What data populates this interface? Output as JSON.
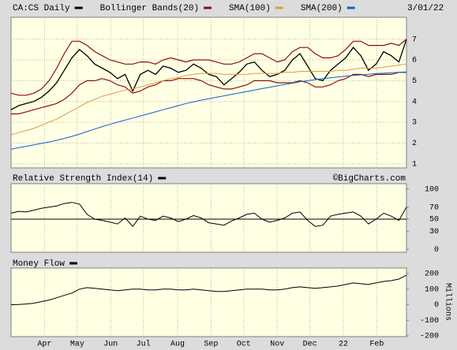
{
  "chart_data": [
    {
      "type": "line",
      "date": "3/01/22",
      "x": [
        0,
        1,
        2,
        3,
        4,
        5,
        6,
        7,
        8,
        9,
        10,
        11,
        12,
        13,
        14,
        15,
        16,
        17,
        18,
        19,
        20,
        21,
        22,
        23,
        24,
        25,
        26,
        27,
        28,
        29,
        30,
        31,
        32,
        33,
        34,
        35,
        36,
        37,
        38,
        39,
        40,
        41,
        42,
        43,
        44,
        45,
        46,
        47,
        48,
        49,
        50,
        51,
        52
      ],
      "xlim": [
        0,
        52
      ],
      "ylim": [
        0.8,
        8.05
      ],
      "yticks": [
        1,
        2,
        3,
        4,
        5,
        6,
        7
      ],
      "grid": true,
      "series": [
        {
          "name": "CA:CS Daily",
          "color": "#000000",
          "values": [
            3.6,
            3.8,
            3.9,
            4.0,
            4.2,
            4.5,
            4.9,
            5.5,
            6.1,
            6.5,
            6.2,
            5.8,
            5.6,
            5.4,
            5.1,
            5.3,
            4.5,
            5.3,
            5.5,
            5.3,
            5.7,
            5.6,
            5.4,
            5.5,
            5.8,
            5.6,
            5.3,
            5.2,
            4.8,
            5.1,
            5.4,
            5.8,
            5.9,
            5.5,
            5.2,
            5.3,
            5.5,
            6.0,
            6.3,
            5.7,
            5.1,
            5.0,
            5.5,
            5.8,
            6.1,
            6.6,
            6.2,
            5.5,
            5.8,
            6.4,
            6.2,
            5.9,
            7.0
          ]
        },
        {
          "name": "Bollinger Bands(20)",
          "color": "#8b1010",
          "upper": [
            4.4,
            4.3,
            4.3,
            4.4,
            4.6,
            5.0,
            5.6,
            6.3,
            6.9,
            6.9,
            6.7,
            6.4,
            6.2,
            6.0,
            5.9,
            5.8,
            5.8,
            5.9,
            5.9,
            5.8,
            6.0,
            6.1,
            6.0,
            5.9,
            6.0,
            6.0,
            6.0,
            5.9,
            5.8,
            5.8,
            5.9,
            6.1,
            6.3,
            6.3,
            6.1,
            5.9,
            6.0,
            6.4,
            6.6,
            6.6,
            6.3,
            6.1,
            6.1,
            6.2,
            6.5,
            6.9,
            6.9,
            6.7,
            6.7,
            6.7,
            6.8,
            6.7,
            7.0
          ],
          "lower": [
            3.4,
            3.4,
            3.5,
            3.6,
            3.7,
            3.8,
            3.9,
            4.1,
            4.4,
            4.8,
            5.0,
            5.0,
            5.1,
            5.0,
            4.8,
            4.7,
            4.4,
            4.5,
            4.7,
            4.8,
            5.0,
            5.0,
            5.1,
            5.1,
            5.1,
            5.0,
            4.8,
            4.7,
            4.6,
            4.6,
            4.7,
            4.8,
            5.0,
            5.0,
            5.0,
            4.9,
            4.9,
            4.9,
            5.0,
            4.9,
            4.7,
            4.7,
            4.8,
            5.0,
            5.1,
            5.3,
            5.3,
            5.2,
            5.3,
            5.3,
            5.3,
            5.4,
            5.4
          ]
        },
        {
          "name": "SMA(100)",
          "color": "#d9a040",
          "values": [
            2.4,
            2.5,
            2.6,
            2.7,
            2.85,
            3.0,
            3.15,
            3.35,
            3.55,
            3.75,
            3.95,
            4.1,
            4.25,
            4.35,
            4.45,
            4.55,
            4.6,
            4.7,
            4.8,
            4.9,
            5.0,
            5.1,
            5.15,
            5.25,
            5.3,
            5.35,
            5.35,
            5.35,
            5.3,
            5.3,
            5.3,
            5.3,
            5.35,
            5.35,
            5.35,
            5.35,
            5.4,
            5.4,
            5.45,
            5.45,
            5.45,
            5.45,
            5.45,
            5.5,
            5.5,
            5.55,
            5.6,
            5.6,
            5.6,
            5.65,
            5.7,
            5.75,
            5.8
          ]
        },
        {
          "name": "SMA(200)",
          "color": "#1060d0",
          "values": [
            1.7,
            1.77,
            1.84,
            1.91,
            1.98,
            2.05,
            2.13,
            2.22,
            2.32,
            2.43,
            2.55,
            2.67,
            2.79,
            2.9,
            3.0,
            3.1,
            3.2,
            3.3,
            3.4,
            3.5,
            3.6,
            3.7,
            3.8,
            3.9,
            3.98,
            4.06,
            4.13,
            4.2,
            4.27,
            4.34,
            4.41,
            4.48,
            4.55,
            4.62,
            4.68,
            4.75,
            4.82,
            4.88,
            4.95,
            5.0,
            5.05,
            5.1,
            5.14,
            5.18,
            5.22,
            5.25,
            5.28,
            5.31,
            5.34,
            5.36,
            5.38,
            5.4,
            5.42
          ]
        }
      ]
    },
    {
      "type": "line",
      "title": "Relative Strength Index(14)",
      "credit": "©BigCharts.com",
      "x": [
        0,
        1,
        2,
        3,
        4,
        5,
        6,
        7,
        8,
        9,
        10,
        11,
        12,
        13,
        14,
        15,
        16,
        17,
        18,
        19,
        20,
        21,
        22,
        23,
        24,
        25,
        26,
        27,
        28,
        29,
        30,
        31,
        32,
        33,
        34,
        35,
        36,
        37,
        38,
        39,
        40,
        41,
        42,
        43,
        44,
        45,
        46,
        47,
        48,
        49,
        50,
        51,
        52
      ],
      "xlim": [
        0,
        52
      ],
      "ylim": [
        -5,
        109
      ],
      "yticks": [
        0,
        30,
        50,
        70,
        100
      ],
      "hline": 50,
      "series": [
        {
          "name": "Relative Strength Index(14)",
          "color": "#000000",
          "values": [
            60,
            63,
            62,
            65,
            68,
            70,
            72,
            76,
            78,
            75,
            58,
            50,
            48,
            45,
            42,
            52,
            38,
            55,
            50,
            48,
            55,
            52,
            46,
            50,
            56,
            52,
            44,
            42,
            40,
            47,
            52,
            58,
            60,
            50,
            45,
            48,
            52,
            60,
            62,
            48,
            38,
            40,
            55,
            58,
            60,
            62,
            55,
            42,
            50,
            60,
            55,
            48,
            70
          ]
        }
      ]
    },
    {
      "type": "line",
      "title": "Money Flow",
      "ylabel": "Millions",
      "x": [
        0,
        1,
        2,
        3,
        4,
        5,
        6,
        7,
        8,
        9,
        10,
        11,
        12,
        13,
        14,
        15,
        16,
        17,
        18,
        19,
        20,
        21,
        22,
        23,
        24,
        25,
        26,
        27,
        28,
        29,
        30,
        31,
        32,
        33,
        34,
        35,
        36,
        37,
        38,
        39,
        40,
        41,
        42,
        43,
        44,
        45,
        46,
        47,
        48,
        49,
        50,
        51,
        52
      ],
      "xlim": [
        0,
        52
      ],
      "ylim": [
        -205,
        236
      ],
      "yticks": [
        -200,
        -100,
        0,
        100,
        200
      ],
      "xticks": [
        {
          "value": 4.4,
          "label": "Apr"
        },
        {
          "value": 8.7,
          "label": "May"
        },
        {
          "value": 13.1,
          "label": "Jun"
        },
        {
          "value": 17.4,
          "label": "Jul"
        },
        {
          "value": 21.9,
          "label": "Aug"
        },
        {
          "value": 26.3,
          "label": "Sep"
        },
        {
          "value": 30.6,
          "label": "Oct"
        },
        {
          "value": 35,
          "label": "Nov"
        },
        {
          "value": 39.3,
          "label": "Dec"
        },
        {
          "value": 43.7,
          "label": "22"
        },
        {
          "value": 48.1,
          "label": "Feb"
        }
      ],
      "series": [
        {
          "name": "Money Flow",
          "color": "#000000",
          "values": [
            0,
            2,
            5,
            10,
            20,
            30,
            45,
            60,
            75,
            100,
            110,
            105,
            100,
            95,
            90,
            95,
            100,
            100,
            95,
            95,
            100,
            100,
            95,
            95,
            100,
            95,
            90,
            85,
            85,
            90,
            95,
            100,
            100,
            100,
            95,
            95,
            100,
            110,
            115,
            110,
            105,
            110,
            115,
            120,
            130,
            140,
            135,
            130,
            140,
            150,
            155,
            165,
            190
          ]
        }
      ]
    }
  ]
}
